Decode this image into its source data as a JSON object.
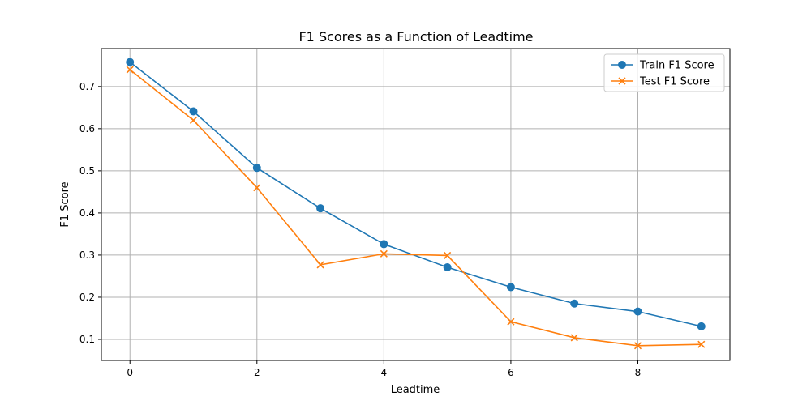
{
  "chart_data": {
    "type": "line",
    "title": "F1 Scores as a Function of Leadtime",
    "xlabel": "Leadtime",
    "ylabel": "F1 Score",
    "x": [
      0,
      1,
      2,
      3,
      4,
      5,
      6,
      7,
      8,
      9
    ],
    "xlim": [
      -0.45,
      9.45
    ],
    "ylim": [
      0.05,
      0.79
    ],
    "xticks": [
      0,
      2,
      4,
      6,
      8
    ],
    "yticks": [
      0.1,
      0.2,
      0.3,
      0.4,
      0.5,
      0.6,
      0.7
    ],
    "ytick_labels": [
      "0.1",
      "0.2",
      "0.3",
      "0.4",
      "0.5",
      "0.6",
      "0.7"
    ],
    "grid": true,
    "legend_position": "top-right",
    "series": [
      {
        "name": "Train F1 Score",
        "color": "#1f77b4",
        "marker": "circle",
        "values": [
          0.758,
          0.641,
          0.507,
          0.411,
          0.326,
          0.271,
          0.224,
          0.185,
          0.166,
          0.131
        ]
      },
      {
        "name": "Test F1 Score",
        "color": "#ff7f0e",
        "marker": "x",
        "values": [
          0.74,
          0.62,
          0.46,
          0.277,
          0.303,
          0.299,
          0.142,
          0.104,
          0.085,
          0.088
        ]
      }
    ]
  }
}
